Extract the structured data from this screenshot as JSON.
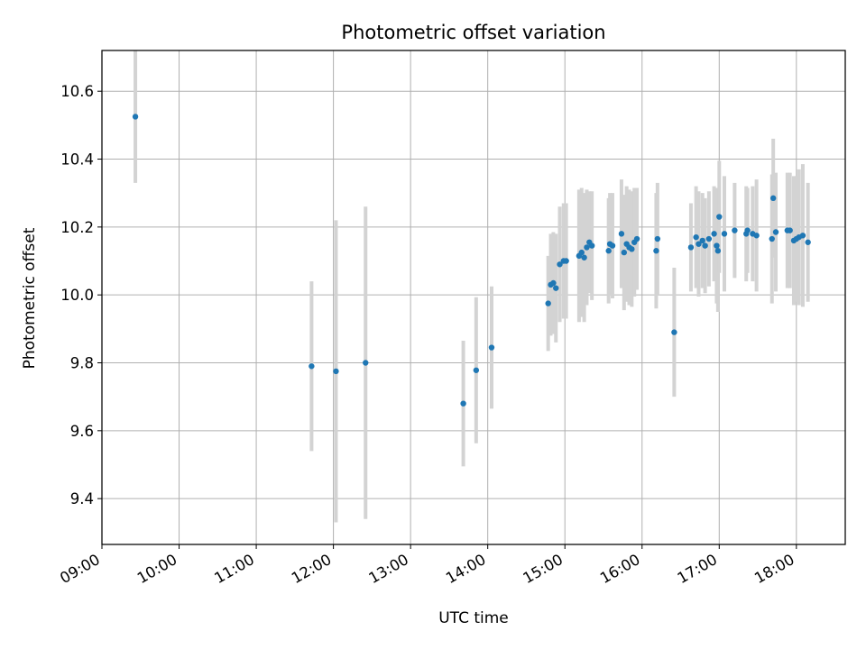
{
  "chart_data": {
    "type": "scatter",
    "title": "Photometric offset variation",
    "xlabel": "UTC time",
    "ylabel": "Photometric offset",
    "x_tick_labels": [
      "09:00",
      "10:00",
      "11:00",
      "12:00",
      "13:00",
      "14:00",
      "15:00",
      "16:00",
      "17:00",
      "18:00"
    ],
    "y_tick_labels": [
      "9.4",
      "9.6",
      "9.8",
      "10.0",
      "10.2",
      "10.4",
      "10.6"
    ],
    "xlim": [
      "09:00",
      "18:38"
    ],
    "ylim": [
      9.265,
      10.72
    ],
    "grid": true,
    "colors": {
      "point": "#1f77b4",
      "errorbar": "#d3d3d3",
      "grid": "#b0b0b0"
    },
    "series": [
      {
        "x": [
          "09:26",
          "11:43",
          "12:02",
          "12:25",
          "13:41",
          "13:51",
          "14:03",
          "14:47",
          "14:49",
          "14:51",
          "14:53",
          "14:56",
          "14:59",
          "15:01",
          "15:11",
          "15:13",
          "15:15",
          "15:17",
          "15:19",
          "15:21",
          "15:34",
          "15:35",
          "15:37",
          "15:44",
          "15:46",
          "15:48",
          "15:50",
          "15:52",
          "15:54",
          "15:56",
          "16:11",
          "16:12",
          "16:25",
          "16:38",
          "16:42",
          "16:44",
          "16:47",
          "16:49",
          "16:52",
          "16:56",
          "16:58",
          "16:59",
          "17:00",
          "17:04",
          "17:12",
          "17:21",
          "17:22",
          "17:26",
          "17:29",
          "17:41",
          "17:42",
          "17:44",
          "17:53",
          "17:55",
          "17:58",
          "18:00",
          "18:02",
          "18:05",
          "18:09"
        ],
        "y": [
          10.525,
          9.79,
          9.775,
          9.8,
          9.68,
          9.778,
          9.845,
          9.975,
          10.03,
          10.035,
          10.02,
          10.09,
          10.1,
          10.1,
          10.115,
          10.125,
          10.11,
          10.14,
          10.155,
          10.145,
          10.13,
          10.15,
          10.145,
          10.18,
          10.125,
          10.15,
          10.14,
          10.135,
          10.155,
          10.165,
          10.13,
          10.165,
          9.89,
          10.14,
          10.17,
          10.15,
          10.16,
          10.145,
          10.165,
          10.18,
          10.145,
          10.13,
          10.23,
          10.18,
          10.19,
          10.18,
          10.19,
          10.18,
          10.175,
          10.165,
          10.285,
          10.185,
          10.19,
          10.19,
          10.16,
          10.165,
          10.17,
          10.175,
          10.155
        ],
        "yerr": [
          0.195,
          0.25,
          0.445,
          0.46,
          0.185,
          0.215,
          0.18,
          0.14,
          0.15,
          0.15,
          0.16,
          0.17,
          0.17,
          0.17,
          0.195,
          0.19,
          0.19,
          0.17,
          0.15,
          0.16,
          0.155,
          0.15,
          0.155,
          0.16,
          0.17,
          0.17,
          0.17,
          0.17,
          0.16,
          0.15,
          0.17,
          0.165,
          0.19,
          0.13,
          0.15,
          0.155,
          0.14,
          0.14,
          0.14,
          0.14,
          0.17,
          0.18,
          0.165,
          0.17,
          0.14,
          0.14,
          0.125,
          0.14,
          0.165,
          0.19,
          0.175,
          0.175,
          0.17,
          0.17,
          0.19,
          0.185,
          0.2,
          0.21,
          0.175
        ]
      }
    ]
  }
}
